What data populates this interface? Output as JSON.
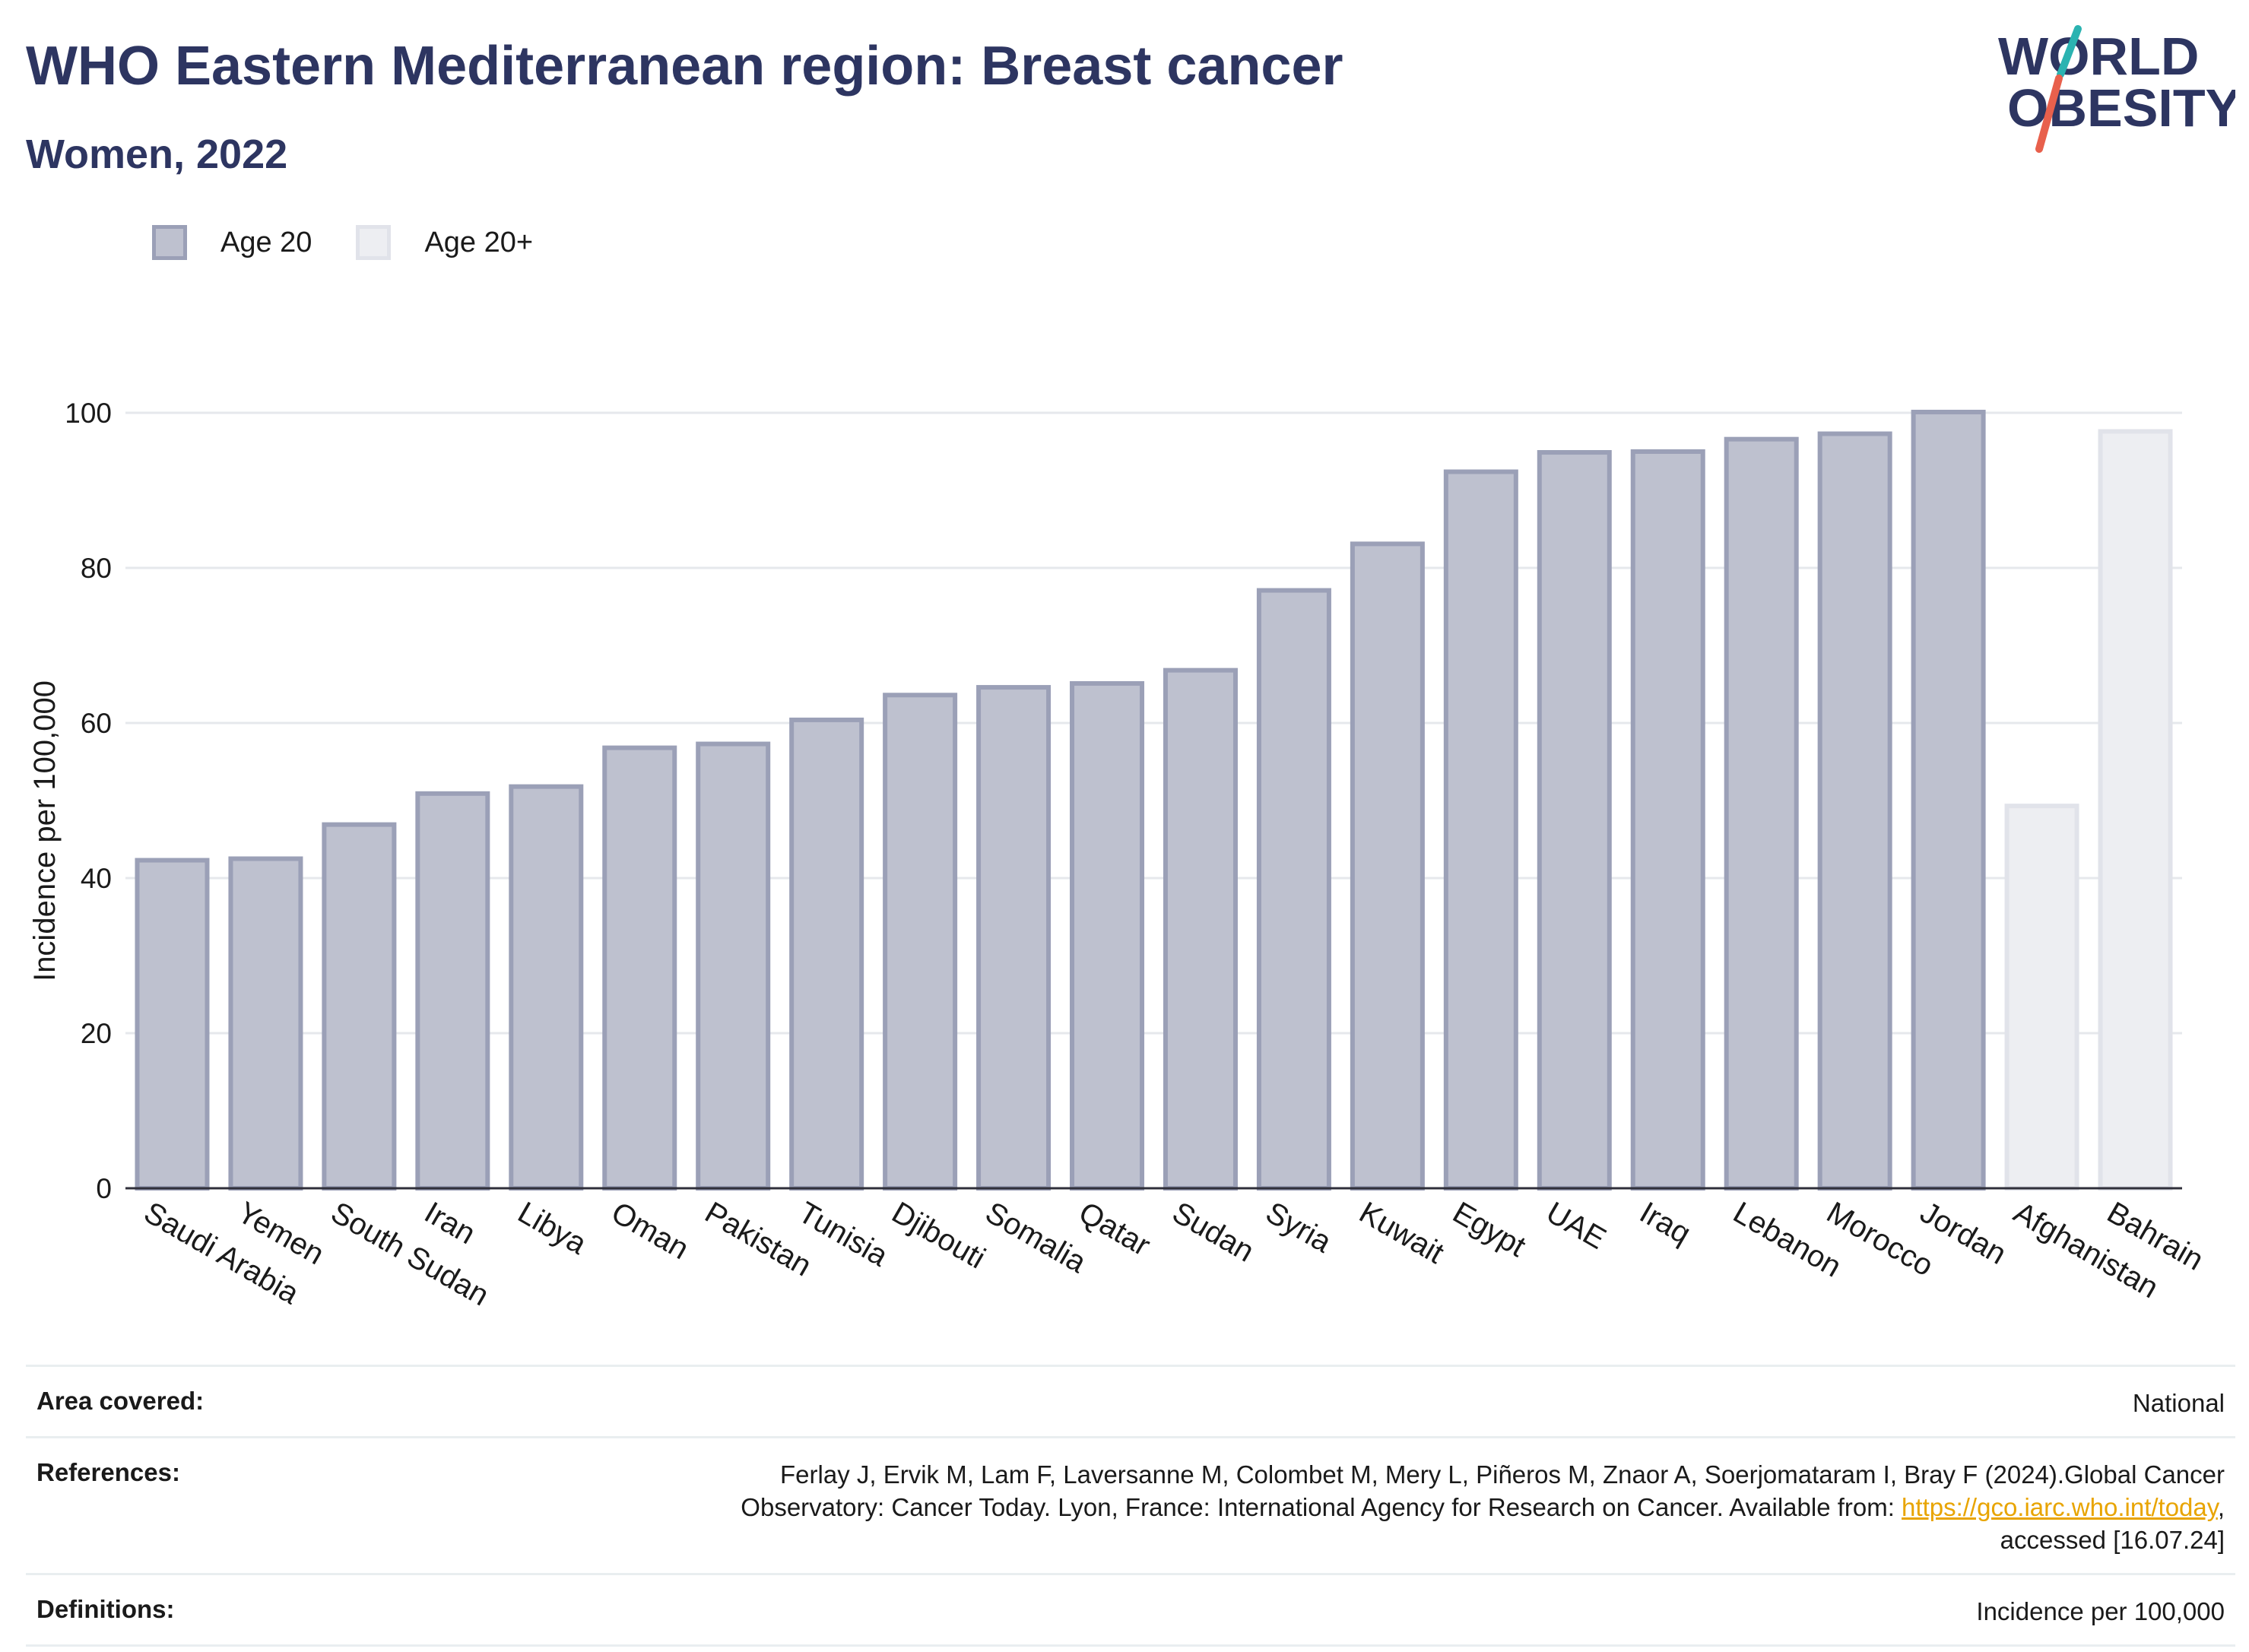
{
  "header": {
    "title": "WHO Eastern Mediterranean region: Breast cancer",
    "subtitle": "Women, 2022"
  },
  "logo": {
    "line1": "WORLD",
    "line2": "OBESITY",
    "colors": {
      "text": "#2d3561",
      "slash_top": "#2bb3b1",
      "slash_bottom": "#e8604c"
    }
  },
  "legend": [
    {
      "label": "Age 20",
      "fill": "#bec1cf",
      "stroke": "#9ba0b7"
    },
    {
      "label": "Age 20+",
      "fill": "#edeef2",
      "stroke": "#e1e3ea"
    }
  ],
  "chart_data": {
    "type": "bar",
    "title": "WHO Eastern Mediterranean region: Breast cancer",
    "subtitle": "Women, 2022",
    "xlabel": "",
    "ylabel": "Incidence per 100,000",
    "ylim": [
      0,
      110
    ],
    "yticks": [
      0,
      20,
      40,
      60,
      80,
      100
    ],
    "grid": true,
    "legend_position": "top-left",
    "categories": [
      "Saudi Arabia",
      "Yemen",
      "South Sudan",
      "Iran",
      "Libya",
      "Oman",
      "Pakistan",
      "Tunisia",
      "Djibouti",
      "Somalia",
      "Qatar",
      "Sudan",
      "Syria",
      "Kuwait",
      "Egypt",
      "UAE",
      "Iraq",
      "Lebanon",
      "Morocco",
      "Jordan",
      "Afghanistan",
      "Bahrain"
    ],
    "series": [
      {
        "name": "Age 20",
        "values": [
          42.3,
          42.5,
          46.9,
          50.9,
          51.8,
          56.8,
          57.3,
          60.4,
          63.6,
          64.6,
          65.1,
          66.8,
          77.1,
          83.1,
          92.4,
          94.9,
          95.0,
          96.6,
          97.3,
          100.1,
          null,
          null
        ]
      },
      {
        "name": "Age 20+",
        "values": [
          null,
          null,
          null,
          null,
          null,
          null,
          null,
          null,
          null,
          null,
          null,
          null,
          null,
          null,
          null,
          null,
          null,
          null,
          null,
          null,
          49.3,
          97.6
        ]
      }
    ]
  },
  "footer": {
    "area_label": "Area covered:",
    "area_value": "National",
    "references_label": "References:",
    "references_line1": "Ferlay J, Ervik M, Lam F, Laversanne M, Colombet M, Mery L, Piñeros M, Znaor A, Soerjomataram I, Bray F (2024).Global Cancer",
    "references_line2_text": "Observatory: Cancer Today. Lyon, France: International Agency for Research on Cancer. Available from: ",
    "references_link": "https://gco.iarc.who.int/today",
    "references_line2_end": ",",
    "references_line3": "accessed [16.07.24]",
    "definitions_label": "Definitions:",
    "definitions_value": "Incidence per 100,000"
  }
}
